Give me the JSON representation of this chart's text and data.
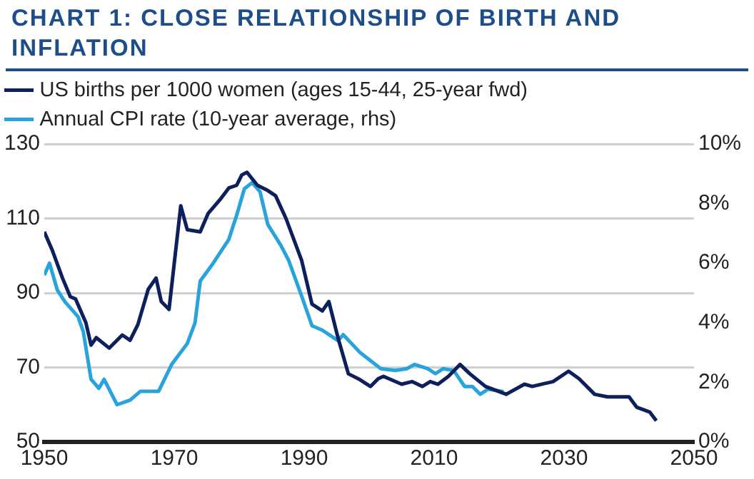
{
  "chart_data": {
    "type": "line",
    "title": "CHART 1: CLOSE RELATIONSHIP OF BIRTH AND INFLATION",
    "xlim": [
      1950,
      2050
    ],
    "xticks": [
      1950,
      1970,
      1990,
      2010,
      2030,
      2050
    ],
    "ylim": [
      50,
      130
    ],
    "yticks": [
      50,
      70,
      90,
      110,
      130
    ],
    "y2lim": [
      0,
      10
    ],
    "y2ticks": [
      {
        "value": 0,
        "label": "0%"
      },
      {
        "value": 2,
        "label": "2%"
      },
      {
        "value": 4,
        "label": "4%"
      },
      {
        "value": 6,
        "label": "6%"
      },
      {
        "value": 8,
        "label": "8%"
      },
      {
        "value": 10,
        "label": "10%"
      }
    ],
    "grid": "y",
    "legend": "top left",
    "marker": "none",
    "line_style": "solid",
    "series": [
      {
        "name": "US births per 1000 women (ages 15-44, 25-year fwd)",
        "color": "#0d1f5c",
        "x": [
          1950,
          1951.2,
          1952.8,
          1954,
          1954.8,
          1956.4,
          1957.2,
          1958,
          1960,
          1962,
          1963.2,
          1964.4,
          1966,
          1967.2,
          1968,
          1969.2,
          1971,
          1972,
          1974,
          1975.2,
          1977.2,
          1978.4,
          1979.6,
          1980.4,
          1981.2,
          1982.8,
          1984.4,
          1985.6,
          1987.2,
          1989.6,
          1991.2,
          1992.8,
          1993.8,
          1995.2,
          1996.8,
          1998.4,
          2000.2,
          2001.4,
          2002.2,
          2005,
          2006.6,
          2008.2,
          2009.4,
          2010.6,
          2012.2,
          2014,
          2015.5,
          2017.9,
          2021.1,
          2023.9,
          2025.1,
          2028.3,
          2030.7,
          2032.3,
          2034.7,
          2036.7,
          2040,
          2041.2,
          2043.2,
          2044.2
        ],
        "values": [
          106.4,
          101.6,
          94,
          89,
          88.4,
          82,
          76,
          78,
          75.2,
          78.7,
          77.3,
          81.5,
          91,
          94,
          87.7,
          85.6,
          113.4,
          107,
          106.4,
          111.3,
          115.4,
          118.2,
          118.9,
          121.7,
          122.4,
          118.9,
          117.5,
          116.1,
          110,
          98.8,
          87,
          85.2,
          87.7,
          78,
          68.3,
          66.9,
          64.9,
          67,
          67.6,
          65.5,
          66.2,
          64.9,
          66.2,
          65.5,
          67.6,
          70.8,
          68.3,
          64.9,
          62.8,
          65.5,
          64.9,
          66.2,
          69,
          67,
          62.8,
          62.1,
          62.1,
          59.3,
          58,
          55.7
        ]
      },
      {
        "name": "Annual CPI rate (10-year average, rhs)",
        "color": "#29a3dc",
        "axis": "y2",
        "x": [
          1950,
          1950.8,
          1952,
          1953.2,
          1955.2,
          1956,
          1957.2,
          1958.4,
          1959.2,
          1961.2,
          1963.2,
          1964.8,
          1967.6,
          1969.6,
          1972,
          1973.2,
          1974,
          1976,
          1978.4,
          1979.6,
          1980.8,
          1982,
          1983.2,
          1984.4,
          1986.4,
          1987.6,
          1989.6,
          1991.2,
          1992.8,
          1995.2,
          1996,
          1998.6,
          2001.8,
          2004,
          2005.8,
          2007,
          2009,
          2010.2,
          2011.4,
          2013,
          2014.7,
          2015.9,
          2017.1,
          2018.3,
          2020.7
        ],
        "values": [
          5.6,
          6.0,
          5.1,
          4.7,
          4.2,
          3.7,
          2.1,
          1.8,
          2.1,
          1.25,
          1.4,
          1.7,
          1.7,
          2.6,
          3.3,
          4.0,
          5.4,
          6.0,
          6.8,
          7.6,
          8.5,
          8.7,
          8.4,
          7.3,
          6.6,
          6.1,
          4.9,
          3.9,
          3.75,
          3.4,
          3.6,
          3.0,
          2.46,
          2.4,
          2.46,
          2.6,
          2.46,
          2.29,
          2.46,
          2.4,
          1.86,
          1.86,
          1.6,
          1.77,
          1.69
        ]
      }
    ]
  }
}
